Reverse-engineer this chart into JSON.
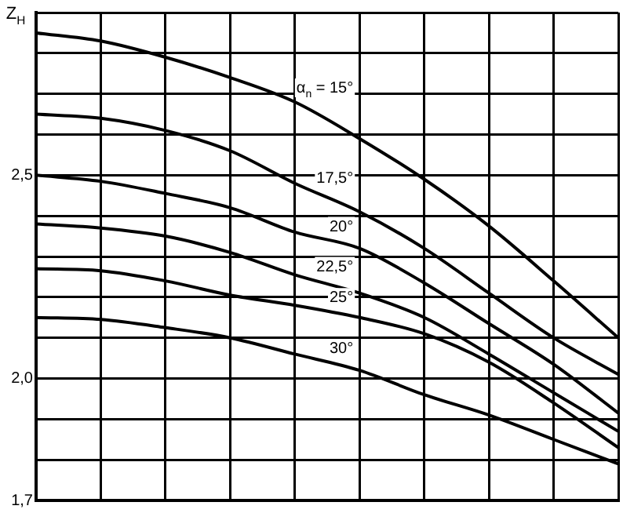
{
  "chart_data": {
    "type": "line",
    "ylabel": "Z$_{H}$",
    "categories": [
      null,
      null,
      null,
      null,
      null,
      null,
      null,
      null,
      null,
      null
    ],
    "series": [
      {
        "name": "α$_{n}$ = 15°",
        "color": "#000000",
        "values": [
          2.85,
          2.83,
          2.79,
          2.74,
          2.68,
          2.59,
          2.49,
          2.375,
          2.24,
          2.1
        ]
      },
      {
        "name": "17,5°",
        "color": "#000000",
        "values": [
          2.65,
          2.64,
          2.61,
          2.56,
          2.48,
          2.41,
          2.32,
          2.21,
          2.1,
          2.01
        ]
      },
      {
        "name": "20°",
        "color": "#000000",
        "values": [
          2.5,
          2.485,
          2.455,
          2.42,
          2.36,
          2.32,
          2.235,
          2.135,
          2.035,
          1.915
        ]
      },
      {
        "name": "22,5°",
        "color": "#000000",
        "values": [
          2.38,
          2.37,
          2.35,
          2.31,
          2.255,
          2.21,
          2.15,
          2.06,
          1.965,
          1.87
        ]
      },
      {
        "name": "25°",
        "color": "#000000",
        "values": [
          2.27,
          2.265,
          2.24,
          2.205,
          2.18,
          2.15,
          2.11,
          2.04,
          1.94,
          1.83
        ]
      },
      {
        "name": "30°",
        "color": "#000000",
        "values": [
          2.15,
          2.145,
          2.125,
          2.1,
          2.06,
          2.02,
          1.96,
          1.91,
          1.85,
          1.79
        ]
      }
    ],
    "ylim": [
      1.7,
      2.9
    ],
    "yticks": [
      {
        "value": 1.7,
        "label": "1,7"
      },
      {
        "value": 1.8,
        "label": null
      },
      {
        "value": 1.9,
        "label": null
      },
      {
        "value": 2.0,
        "label": "2,0"
      },
      {
        "value": 2.1,
        "label": null
      },
      {
        "value": 2.2,
        "label": null
      },
      {
        "value": 2.3,
        "label": null
      },
      {
        "value": 2.4,
        "label": null
      },
      {
        "value": 2.5,
        "label": "2,5"
      },
      {
        "value": 2.6,
        "label": null
      },
      {
        "value": 2.7,
        "label": null
      },
      {
        "value": 2.8,
        "label": null
      },
      {
        "value": 2.9,
        "label": null
      }
    ],
    "tick_labels": "y",
    "grid": true,
    "legend": false,
    "marker": "none",
    "line_style": "solid"
  }
}
